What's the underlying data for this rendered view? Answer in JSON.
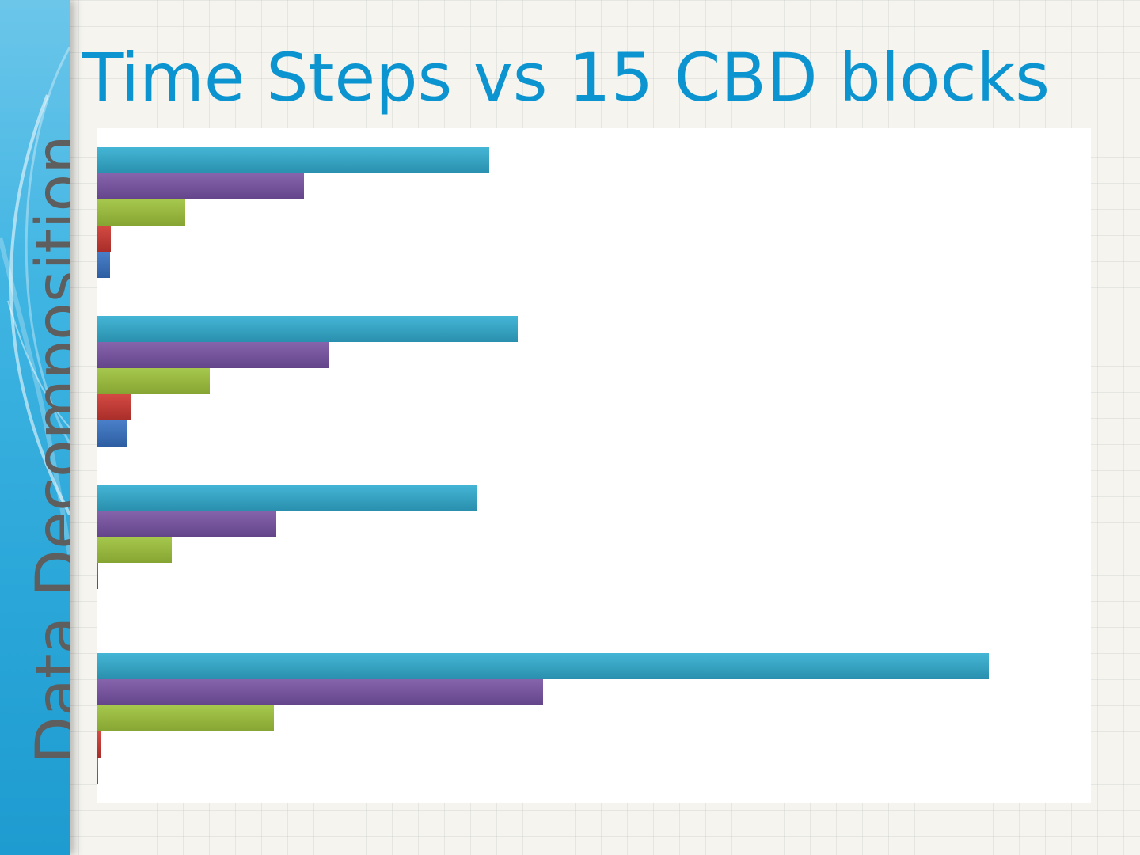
{
  "slide": {
    "title": "Time Steps vs 15 CBD blocks",
    "side_title": "Data Decomposition"
  },
  "colors": {
    "title": "#0b94cf",
    "side_title": "#5e5e5e",
    "sidebar": "#2aa6d8"
  },
  "chart_data": {
    "type": "bar",
    "orientation": "horizontal",
    "xlim": [
      0,
      1256
    ],
    "grid": false,
    "legend": "none",
    "groups": [
      {
        "values": [
          496,
          262,
          112,
          18,
          17
        ]
      },
      {
        "values": [
          532,
          293,
          143,
          44,
          39
        ]
      },
      {
        "values": [
          480,
          227,
          95,
          2,
          0
        ]
      },
      {
        "values": [
          1127,
          564,
          224,
          6,
          2
        ]
      }
    ],
    "series_colors": [
      "#35a9c9",
      "#7a57a0",
      "#9bbb3e",
      "#c63a35",
      "#3a70bd"
    ]
  }
}
